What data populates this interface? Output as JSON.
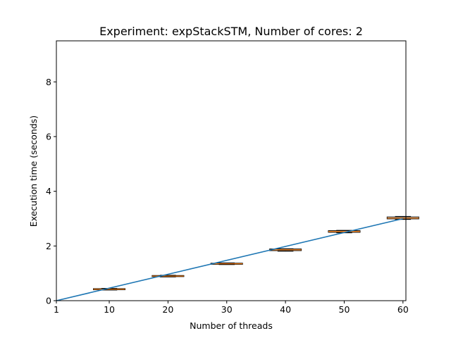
{
  "chart_data": {
    "type": "line",
    "title": "Experiment: expStackSTM, Number of cores: 2",
    "xlabel": "Number of threads",
    "ylabel": "Execution time (seconds)",
    "xlim": [
      1,
      60.5
    ],
    "ylim": [
      0,
      9.5
    ],
    "xticks": [
      1,
      10,
      20,
      30,
      40,
      50,
      60
    ],
    "yticks": [
      0,
      2,
      4,
      6,
      8
    ],
    "grid": false,
    "series": [
      {
        "kind": "line",
        "color": "#1f77b4",
        "x": [
          1,
          60
        ],
        "y": [
          0.0,
          3.0
        ]
      }
    ],
    "boxplots": {
      "box_color": "#000000",
      "median_color": "#ff7f0e",
      "items": [
        {
          "x": 10,
          "q1": 0.4,
          "median": 0.42,
          "q3": 0.44,
          "whislo": 0.39,
          "whishi": 0.45
        },
        {
          "x": 20,
          "q1": 0.88,
          "median": 0.9,
          "q3": 0.92,
          "whislo": 0.87,
          "whishi": 0.93
        },
        {
          "x": 30,
          "q1": 1.33,
          "median": 1.35,
          "q3": 1.37,
          "whislo": 1.32,
          "whishi": 1.38
        },
        {
          "x": 40,
          "q1": 1.83,
          "median": 1.86,
          "q3": 1.89,
          "whislo": 1.81,
          "whishi": 1.9
        },
        {
          "x": 50,
          "q1": 2.5,
          "median": 2.53,
          "q3": 2.56,
          "whislo": 2.48,
          "whishi": 2.57
        },
        {
          "x": 60,
          "q1": 2.99,
          "median": 3.02,
          "q3": 3.06,
          "whislo": 2.97,
          "whishi": 3.08
        }
      ]
    }
  }
}
